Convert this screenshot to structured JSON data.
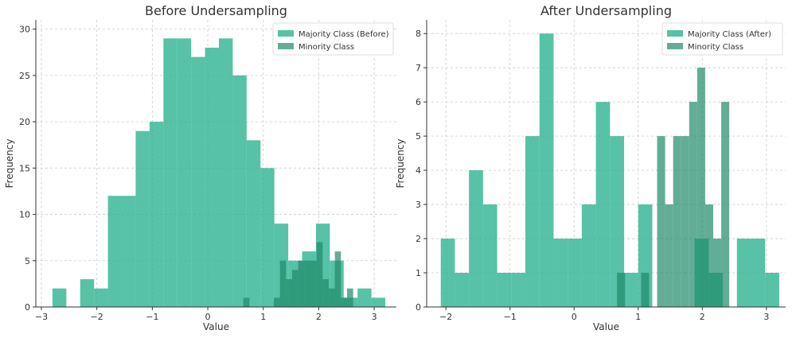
{
  "chart_data": [
    {
      "type": "histogram",
      "title": "Before Undersampling",
      "xlabel": "Value",
      "ylabel": "Frequency",
      "xlim": [
        -3.1,
        3.4
      ],
      "ylim": [
        0,
        31
      ],
      "xticks": [
        -3,
        -2,
        -1,
        0,
        1,
        2,
        3
      ],
      "xtick_labels": [
        "−3",
        "−2",
        "−1",
        "0",
        "1",
        "2",
        "3"
      ],
      "yticks": [
        0,
        5,
        10,
        15,
        20,
        25,
        30
      ],
      "ytick_labels": [
        "0",
        "5",
        "10",
        "15",
        "20",
        "25",
        "30"
      ],
      "grid": true,
      "legend_position": "top-right",
      "series": [
        {
          "name": "Majority Class (Before)",
          "color": "#2db38e",
          "opacity": 0.8,
          "bin_edges": [
            -2.8,
            -2.55,
            -2.3,
            -2.05,
            -1.8,
            -1.55,
            -1.3,
            -1.05,
            -0.8,
            -0.55,
            -0.3,
            -0.05,
            0.2,
            0.45,
            0.7,
            0.95,
            1.2,
            1.45,
            1.7,
            1.95,
            2.2,
            2.45,
            2.7,
            2.95,
            3.2
          ],
          "counts": [
            2,
            0,
            3,
            2,
            12,
            12,
            19,
            20,
            29,
            29,
            27,
            28,
            29,
            25,
            18,
            15,
            9,
            5,
            6,
            9,
            5,
            1,
            2,
            1
          ]
        },
        {
          "name": "Minority Class",
          "color": "#1f8a6a",
          "opacity": 0.7,
          "bin_edges": [
            0.64,
            0.75,
            0.86,
            0.97,
            1.08,
            1.19,
            1.3,
            1.41,
            1.52,
            1.63,
            1.74,
            1.85,
            1.96,
            2.07,
            2.18,
            2.29,
            2.4,
            2.51,
            2.62
          ],
          "counts": [
            1,
            0,
            0,
            0,
            0,
            1,
            5,
            3,
            4,
            5,
            5,
            5,
            7,
            3,
            2,
            6,
            1,
            2
          ]
        }
      ]
    },
    {
      "type": "histogram",
      "title": "After Undersampling",
      "xlabel": "Value",
      "ylabel": "Frequency",
      "xlim": [
        -2.3,
        3.3
      ],
      "ylim": [
        0,
        8.4
      ],
      "xticks": [
        -2,
        -1,
        0,
        1,
        2,
        3
      ],
      "xtick_labels": [
        "−2",
        "−1",
        "0",
        "1",
        "2",
        "3"
      ],
      "yticks": [
        0,
        1,
        2,
        3,
        4,
        5,
        6,
        7,
        8
      ],
      "ytick_labels": [
        "0",
        "1",
        "2",
        "3",
        "4",
        "5",
        "6",
        "7",
        "8"
      ],
      "grid": true,
      "legend_position": "top-right",
      "series": [
        {
          "name": "Majority Class (After)",
          "color": "#2db38e",
          "opacity": 0.8,
          "bin_edges": [
            -2.08,
            -1.86,
            -1.64,
            -1.42,
            -1.2,
            -0.98,
            -0.76,
            -0.54,
            -0.32,
            -0.1,
            0.12,
            0.34,
            0.56,
            0.78,
            1.0,
            1.22,
            1.44,
            1.66,
            1.88,
            2.1,
            2.32,
            2.54,
            2.76,
            2.98,
            3.2
          ],
          "counts": [
            2,
            1,
            4,
            3,
            1,
            1,
            5,
            8,
            2,
            2,
            3,
            6,
            5,
            1,
            3,
            0,
            0,
            0,
            2,
            1,
            0,
            2,
            2,
            1
          ]
        },
        {
          "name": "Minority Class",
          "color": "#1f8a6a",
          "opacity": 0.7,
          "bin_edges": [
            0.67,
            0.795,
            0.92,
            1.045,
            1.17,
            1.295,
            1.42,
            1.545,
            1.67,
            1.795,
            1.92,
            2.045,
            2.17,
            2.295,
            2.42
          ],
          "counts": [
            1,
            0,
            0,
            1,
            0,
            5,
            3,
            5,
            5,
            6,
            7,
            3,
            2,
            6
          ]
        }
      ]
    }
  ]
}
